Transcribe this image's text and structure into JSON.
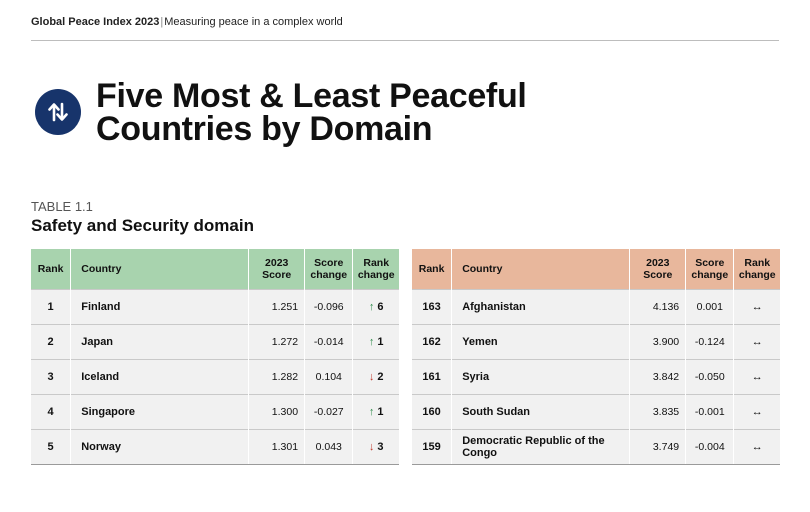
{
  "header": {
    "brand": "Global Peace Index 2023",
    "separator": "|",
    "subtitle": "Measuring peace in a complex world"
  },
  "badge": {
    "icon": "up-down-arrows-icon",
    "color": "#17346b"
  },
  "title": {
    "line1": "Five Most & Least Peaceful",
    "line2": "Countries by Domain"
  },
  "table": {
    "number": "TABLE 1.1",
    "title": "Safety and Security domain",
    "columns": {
      "rank": "Rank",
      "country": "Country",
      "score": "2023 Score",
      "score_change": "Score change",
      "rank_change": "Rank change"
    },
    "most_peaceful": {
      "header_color": "#a8d3ae",
      "rows": [
        {
          "rank": "1",
          "country": "Finland",
          "score": "1.251",
          "score_change": "-0.096",
          "rank_dir": "up",
          "rank_change": "6"
        },
        {
          "rank": "2",
          "country": "Japan",
          "score": "1.272",
          "score_change": "-0.014",
          "rank_dir": "up",
          "rank_change": "1"
        },
        {
          "rank": "3",
          "country": "Iceland",
          "score": "1.282",
          "score_change": "0.104",
          "rank_dir": "down",
          "rank_change": "2"
        },
        {
          "rank": "4",
          "country": "Singapore",
          "score": "1.300",
          "score_change": "-0.027",
          "rank_dir": "up",
          "rank_change": "1"
        },
        {
          "rank": "5",
          "country": "Norway",
          "score": "1.301",
          "score_change": "0.043",
          "rank_dir": "down",
          "rank_change": "3"
        }
      ]
    },
    "least_peaceful": {
      "header_color": "#e8b79c",
      "rows": [
        {
          "rank": "163",
          "country": "Afghanistan",
          "score": "4.136",
          "score_change": "0.001",
          "rank_dir": "same",
          "rank_change": ""
        },
        {
          "rank": "162",
          "country": "Yemen",
          "score": "3.900",
          "score_change": "-0.124",
          "rank_dir": "same",
          "rank_change": ""
        },
        {
          "rank": "161",
          "country": "Syria",
          "score": "3.842",
          "score_change": "-0.050",
          "rank_dir": "same",
          "rank_change": ""
        },
        {
          "rank": "160",
          "country": "South Sudan",
          "score": "3.835",
          "score_change": "-0.001",
          "rank_dir": "same",
          "rank_change": ""
        },
        {
          "rank": "159",
          "country": "Democratic Republic of the Congo",
          "score": "3.749",
          "score_change": "-0.004",
          "rank_dir": "same",
          "rank_change": ""
        }
      ]
    }
  }
}
